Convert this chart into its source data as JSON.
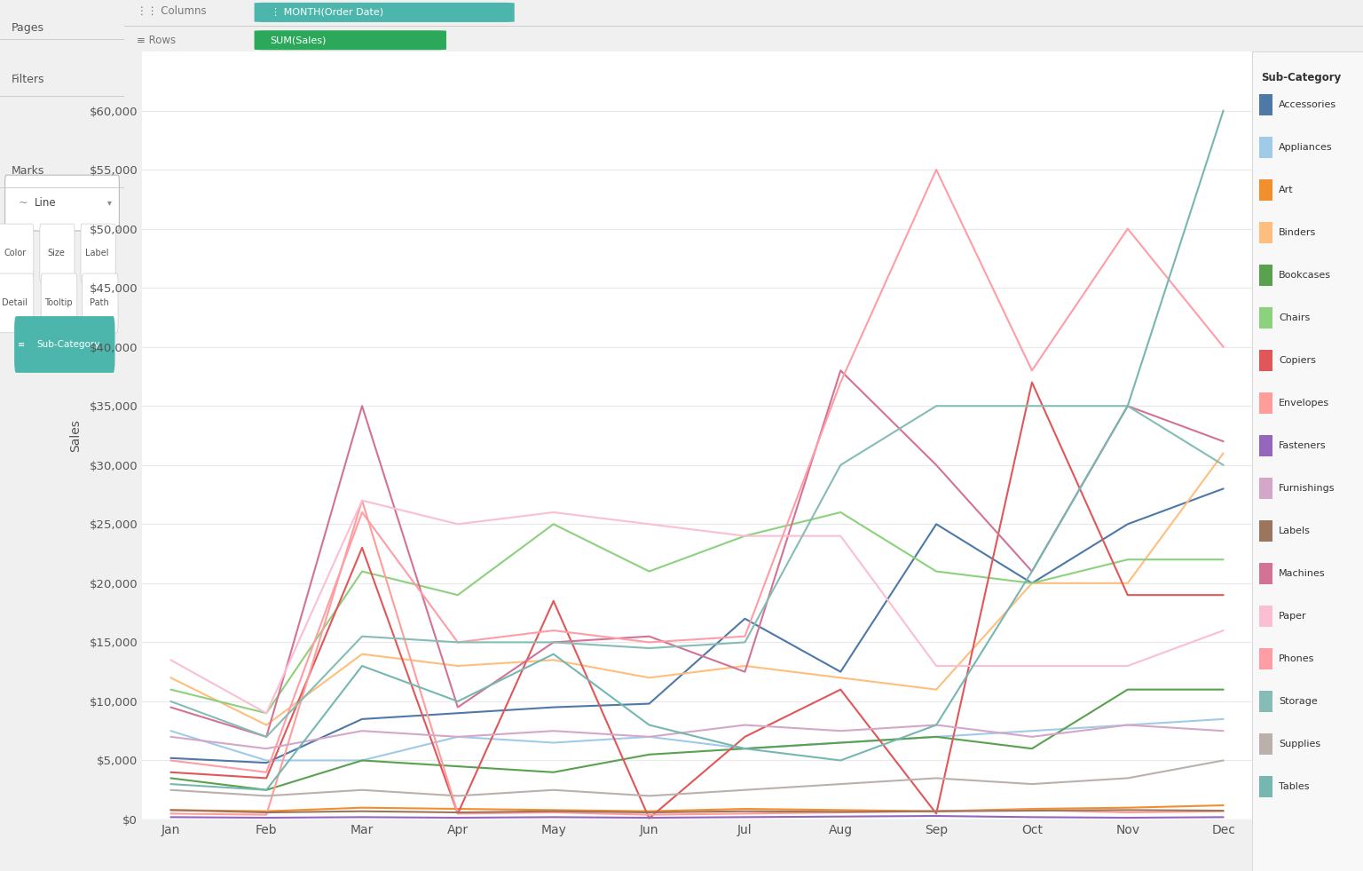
{
  "months": [
    "Jan",
    "Feb",
    "Mar",
    "Apr",
    "May",
    "Jun",
    "Jul",
    "Aug",
    "Sep",
    "Oct",
    "Nov",
    "Dec"
  ],
  "series": {
    "Accessories": {
      "color": "#4e79a7",
      "values": [
        5200,
        4800,
        8500,
        9000,
        9500,
        9800,
        17000,
        12500,
        25000,
        20000,
        25000,
        28000
      ]
    },
    "Appliances": {
      "color": "#a0cbe8",
      "values": [
        7500,
        5000,
        5000,
        7000,
        6500,
        7000,
        6000,
        6500,
        7000,
        7500,
        8000,
        8500
      ]
    },
    "Art": {
      "color": "#f28e2b",
      "values": [
        800,
        700,
        1000,
        900,
        800,
        700,
        900,
        800,
        700,
        900,
        1000,
        1200
      ]
    },
    "Binders": {
      "color": "#ffbe7d",
      "values": [
        12000,
        8000,
        14000,
        13000,
        13500,
        12000,
        13000,
        12000,
        11000,
        20000,
        20000,
        31000
      ]
    },
    "Bookcases": {
      "color": "#59a14f",
      "values": [
        3500,
        2500,
        5000,
        4500,
        4000,
        5500,
        6000,
        6500,
        7000,
        6000,
        11000,
        11000
      ]
    },
    "Chairs": {
      "color": "#8cd17d",
      "values": [
        11000,
        9000,
        21000,
        19000,
        25000,
        21000,
        24000,
        26000,
        21000,
        20000,
        22000,
        22000
      ]
    },
    "Copiers": {
      "color": "#e15759",
      "values": [
        4000,
        3500,
        23000,
        500,
        18500,
        100,
        7000,
        11000,
        500,
        37000,
        19000,
        19000
      ]
    },
    "Envelopes": {
      "color": "#ff9d9a",
      "values": [
        500,
        400,
        27000,
        500,
        600,
        400,
        500,
        600,
        700,
        800,
        600,
        700
      ]
    },
    "Fasteners": {
      "color": "#9467bd",
      "values": [
        200,
        150,
        200,
        150,
        200,
        150,
        200,
        250,
        300,
        200,
        150,
        200
      ]
    },
    "Furnishings": {
      "color": "#d4a6c8",
      "values": [
        7000,
        6000,
        7500,
        7000,
        7500,
        7000,
        8000,
        7500,
        8000,
        7000,
        8000,
        7500
      ]
    },
    "Labels": {
      "color": "#9c755f",
      "values": [
        800,
        600,
        700,
        600,
        700,
        600,
        700,
        650,
        700,
        750,
        800,
        750
      ]
    },
    "Machines": {
      "color": "#d37295",
      "values": [
        9500,
        7000,
        35000,
        9500,
        15000,
        15500,
        12500,
        38000,
        30000,
        21000,
        35000,
        32000
      ]
    },
    "Paper": {
      "color": "#fabfd2",
      "values": [
        13500,
        9000,
        27000,
        25000,
        26000,
        25000,
        24000,
        24000,
        13000,
        13000,
        13000,
        16000
      ]
    },
    "Phones": {
      "color": "#ff9da7",
      "values": [
        5000,
        4000,
        26000,
        15000,
        16000,
        15000,
        15500,
        37000,
        55000,
        38000,
        50000,
        40000
      ]
    },
    "Storage": {
      "color": "#86bcb6",
      "values": [
        10000,
        7000,
        15500,
        15000,
        15000,
        14500,
        15000,
        30000,
        35000,
        35000,
        35000,
        30000
      ]
    },
    "Supplies": {
      "color": "#bab0ac",
      "values": [
        2500,
        2000,
        2500,
        2000,
        2500,
        2000,
        2500,
        3000,
        3500,
        3000,
        3500,
        5000
      ]
    },
    "Tables": {
      "color": "#76b7b2",
      "values": [
        3000,
        2500,
        13000,
        10000,
        14000,
        8000,
        6000,
        5000,
        8000,
        21000,
        35000,
        60000
      ]
    }
  },
  "ylabel": "Sales",
  "ylim": [
    0,
    65000
  ],
  "yticks": [
    0,
    5000,
    10000,
    15000,
    20000,
    25000,
    30000,
    35000,
    40000,
    45000,
    50000,
    55000,
    60000
  ],
  "bg_color": "#f0f0f0",
  "left_panel_color": "#e8e8e8",
  "plot_area_color": "#ffffff",
  "grid_color": "#e8e8e8",
  "legend_title": "Sub-Category",
  "columns_label": "MONTH(Order Date)",
  "rows_label": "SUM(Sales)",
  "teal_pill": "#4db6ac",
  "green_pill": "#2ca85a"
}
